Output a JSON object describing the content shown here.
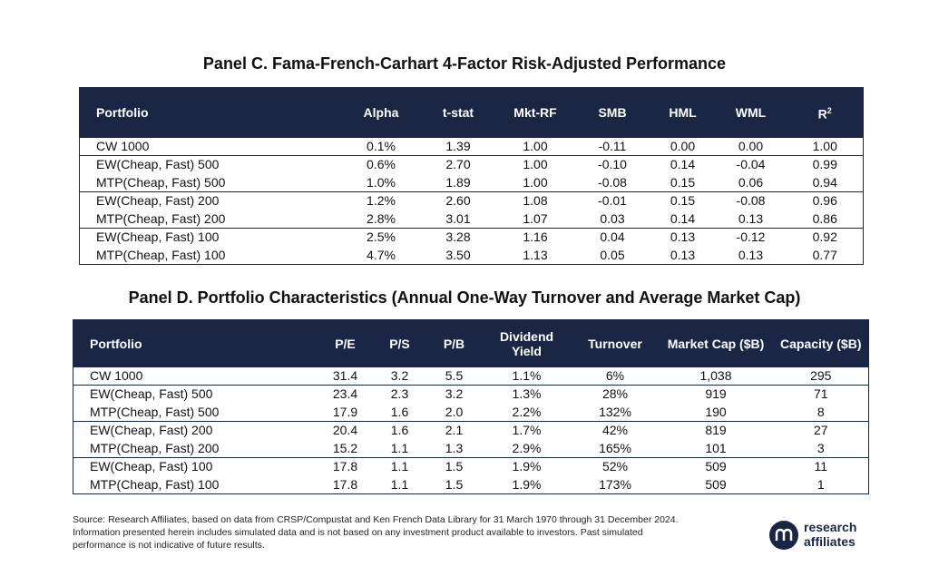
{
  "chart_data": [
    {
      "type": "table",
      "title": "Panel C. Fama-French-Carhart 4-Factor Risk-Adjusted Performance",
      "columns": [
        "Portfolio",
        "Alpha",
        "t-stat",
        "Mkt-RF",
        "SMB",
        "HML",
        "WML",
        "R"
      ],
      "r2_superscript": "2",
      "rows": [
        [
          "CW 1000",
          "0.1%",
          "1.39",
          "1.00",
          "-0.11",
          "0.00",
          "0.00",
          "1.00"
        ],
        [
          "EW(Cheap, Fast) 500",
          "0.6%",
          "2.70",
          "1.00",
          "-0.10",
          "0.14",
          "-0.04",
          "0.99"
        ],
        [
          "MTP(Cheap, Fast) 500",
          "1.0%",
          "1.89",
          "1.00",
          "-0.08",
          "0.15",
          "0.06",
          "0.94"
        ],
        [
          "EW(Cheap, Fast) 200",
          "1.2%",
          "2.60",
          "1.08",
          "-0.01",
          "0.15",
          "-0.08",
          "0.96"
        ],
        [
          "MTP(Cheap, Fast) 200",
          "2.8%",
          "3.01",
          "1.07",
          "0.03",
          "0.14",
          "0.13",
          "0.86"
        ],
        [
          "EW(Cheap, Fast) 100",
          "2.5%",
          "3.28",
          "1.16",
          "0.04",
          "0.13",
          "-0.12",
          "0.92"
        ],
        [
          "MTP(Cheap, Fast) 100",
          "4.7%",
          "3.50",
          "1.13",
          "0.05",
          "0.13",
          "0.13",
          "0.77"
        ]
      ],
      "group_starts": [
        1,
        3,
        5
      ]
    },
    {
      "type": "table",
      "title": "Panel D. Portfolio Characteristics (Annual One-Way Turnover and Average Market Cap)",
      "columns": [
        "Portfolio",
        "P/E",
        "P/S",
        "P/B",
        "Dividend Yield",
        "Turnover",
        "Market Cap ($B)",
        "Capacity ($B)"
      ],
      "rows": [
        [
          "CW 1000",
          "31.4",
          "3.2",
          "5.5",
          "1.1%",
          "6%",
          "1,038",
          "295"
        ],
        [
          "EW(Cheap, Fast) 500",
          "23.4",
          "2.3",
          "3.2",
          "1.3%",
          "28%",
          "919",
          "71"
        ],
        [
          "MTP(Cheap, Fast) 500",
          "17.9",
          "1.6",
          "2.0",
          "2.2%",
          "132%",
          "190",
          "8"
        ],
        [
          "EW(Cheap, Fast) 200",
          "20.4",
          "1.6",
          "2.1",
          "1.7%",
          "42%",
          "819",
          "27"
        ],
        [
          "MTP(Cheap, Fast) 200",
          "15.2",
          "1.1",
          "1.3",
          "2.9%",
          "165%",
          "101",
          "3"
        ],
        [
          "EW(Cheap, Fast) 100",
          "17.8",
          "1.1",
          "1.5",
          "1.9%",
          "52%",
          "509",
          "11"
        ],
        [
          "MTP(Cheap, Fast) 100",
          "17.8",
          "1.1",
          "1.5",
          "1.9%",
          "173%",
          "509",
          "1"
        ]
      ],
      "group_starts": [
        1,
        3,
        5
      ]
    }
  ],
  "footer": {
    "source": "Source: Research Affiliates, based on data from CRSP/Compustat and Ken French Data Library for 31 March 1970 through 31 December 2024. Information presented herein includes simulated data and is not based on any investment product available to investors. Past simulated performance is not indicative of future results.",
    "logo_line1": "research",
    "logo_line2": "affiliates"
  },
  "colors": {
    "header_bg": "#1a2644",
    "header_text": "#ffffff",
    "logo": "#1a2644"
  }
}
